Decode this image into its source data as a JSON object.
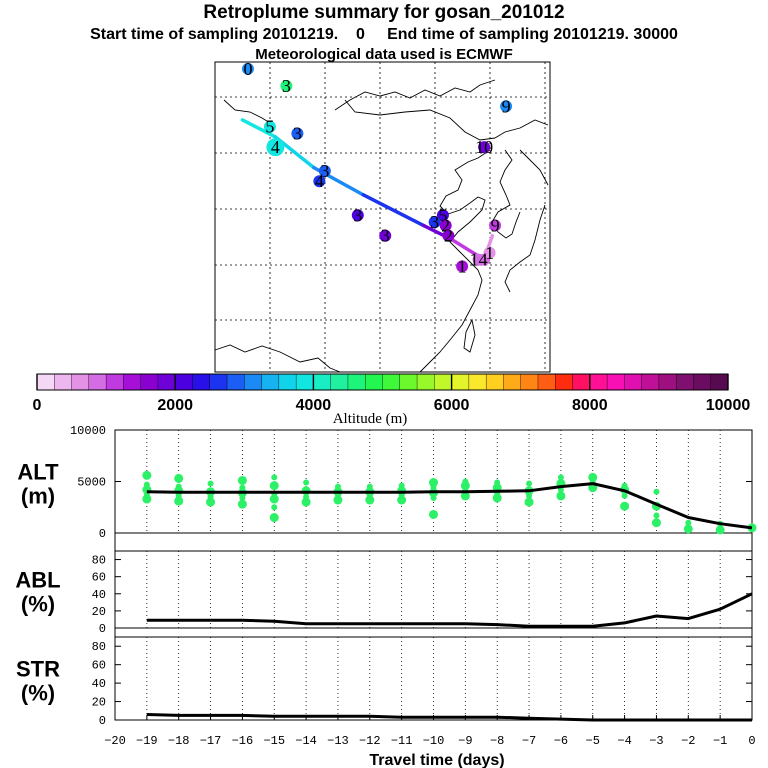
{
  "title": "Retroplume summary for gosan_201012",
  "subtitle": "Start time of sampling 20101219.    0     End time of sampling 20101219. 30000",
  "subtitle2": "Meteorological data used is ECMWF",
  "colorbar": {
    "label": "Altitude (m)",
    "min": 0,
    "max": 10000,
    "ticks": [
      "0",
      "2000",
      "4000",
      "6000",
      "8000",
      "10000"
    ],
    "colors": [
      "#f5d8f5",
      "#eeb6ee",
      "#e392e6",
      "#d46ce4",
      "#bf3be0",
      "#a60fd8",
      "#8a00d0",
      "#6e00d8",
      "#4c00e0",
      "#2a10e8",
      "#1c34f0",
      "#1a5ef4",
      "#1b8af4",
      "#16b3f0",
      "#10d4ea",
      "#12e6e0",
      "#18edc4",
      "#20f0a0",
      "#1ef47a",
      "#22f650",
      "#40f83a",
      "#6cf82c",
      "#98f82a",
      "#c2f82a",
      "#e4f42a",
      "#fae82c",
      "#ffd020",
      "#ffaa18",
      "#ff8614",
      "#ff5c14",
      "#ff2c10",
      "#ff1060",
      "#ff1094",
      "#f810b4",
      "#e010b0",
      "#c01098",
      "#9e1080",
      "#801070",
      "#6a0c60",
      "#580a50"
    ]
  },
  "map": {
    "trajectory": [
      {
        "lon": 80,
        "lat": 54,
        "alt": 3800
      },
      {
        "lon": 86,
        "lat": 51.5,
        "alt": 3900
      },
      {
        "lon": 93,
        "lat": 47,
        "alt": 3500
      },
      {
        "lon": 102,
        "lat": 43,
        "alt": 2800
      },
      {
        "lon": 113,
        "lat": 38.5,
        "alt": 2200
      },
      {
        "lon": 118,
        "lat": 36.5,
        "alt": 1500
      },
      {
        "lon": 124,
        "lat": 33.5,
        "alt": 900
      },
      {
        "lon": 125.5,
        "lat": 37,
        "alt": 500
      }
    ],
    "clusters": [
      {
        "label": "0",
        "lon": 81,
        "lat": 61.5,
        "alt": 3200
      },
      {
        "label": "3",
        "lon": 88,
        "lat": 59,
        "alt": 4500
      },
      {
        "label": "9",
        "lon": 128,
        "lat": 56,
        "alt": 3000
      },
      {
        "label": "5",
        "lon": 85,
        "lat": 53,
        "alt": 3800
      },
      {
        "label": "3",
        "lon": 90,
        "lat": 52,
        "alt": 2800
      },
      {
        "label": "4",
        "lon": 86,
        "lat": 50,
        "alt": 3900
      },
      {
        "label": "10",
        "lon": 124,
        "lat": 50,
        "alt": 1900
      },
      {
        "label": "3",
        "lon": 95,
        "lat": 46.5,
        "alt": 2900
      },
      {
        "label": "4",
        "lon": 94,
        "lat": 45,
        "alt": 2500
      },
      {
        "label": "3",
        "lon": 101,
        "lat": 40,
        "alt": 2100
      },
      {
        "label": "5",
        "lon": 116.5,
        "lat": 40,
        "alt": 2200
      },
      {
        "label": "3",
        "lon": 115,
        "lat": 39,
        "alt": 2600
      },
      {
        "label": "2",
        "lon": 117,
        "lat": 38.5,
        "alt": 1700
      },
      {
        "label": "9",
        "lon": 126,
        "lat": 38.5,
        "alt": 1200
      },
      {
        "label": "3",
        "lon": 106,
        "lat": 37,
        "alt": 1800
      },
      {
        "label": "2",
        "lon": 117.5,
        "lat": 37,
        "alt": 1500
      },
      {
        "label": "1",
        "lon": 125,
        "lat": 34.5,
        "alt": 500
      },
      {
        "label": "14",
        "lon": 123,
        "lat": 33.5,
        "alt": 800
      },
      {
        "label": "1",
        "lon": 120,
        "lat": 32.5,
        "alt": 1400
      }
    ]
  },
  "chart_data": [
    {
      "type": "line",
      "panel": "ALT",
      "ylabel": "ALT\n(m)",
      "ylabel_line1": "ALT",
      "ylabel_line2": "(m)",
      "ylim": [
        0,
        10000
      ],
      "yticks": [
        "10000",
        "5000",
        "0"
      ],
      "x": [
        -19,
        -18,
        -17,
        -16,
        -15,
        -14,
        -13,
        -12,
        -11,
        -10,
        -9,
        -8,
        -7,
        -6,
        -5,
        -4,
        -3,
        -2,
        -1,
        0
      ],
      "values": [
        4000,
        3950,
        3950,
        3950,
        3950,
        3950,
        3950,
        3950,
        3950,
        4000,
        4000,
        4050,
        4100,
        4500,
        4800,
        4100,
        2800,
        1500,
        900,
        500
      ],
      "scatter": [
        {
          "x": -19,
          "y": [
            3300,
            3700,
            4200,
            4700,
            5600
          ]
        },
        {
          "x": -18,
          "y": [
            3100,
            3600,
            4100,
            4500,
            5300
          ]
        },
        {
          "x": -17,
          "y": [
            3000,
            3500,
            4000,
            4800
          ]
        },
        {
          "x": -16,
          "y": [
            2800,
            3400,
            3900,
            4400,
            5100
          ]
        },
        {
          "x": -15,
          "y": [
            1500,
            2500,
            3300,
            3800,
            4600,
            5400
          ]
        },
        {
          "x": -14,
          "y": [
            3000,
            3500,
            4100,
            4900
          ]
        },
        {
          "x": -13,
          "y": [
            3200,
            3600,
            4000,
            4500
          ]
        },
        {
          "x": -12,
          "y": [
            3200,
            3600,
            4000,
            4500
          ]
        },
        {
          "x": -11,
          "y": [
            3200,
            3700,
            4100,
            4600
          ]
        },
        {
          "x": -10,
          "y": [
            1800,
            3400,
            3900,
            4400,
            4900
          ]
        },
        {
          "x": -9,
          "y": [
            3600,
            4100,
            4600,
            5000
          ]
        },
        {
          "x": -8,
          "y": [
            3400,
            3900,
            4400,
            4900
          ]
        },
        {
          "x": -7,
          "y": [
            3000,
            3600,
            4100,
            4800
          ]
        },
        {
          "x": -6,
          "y": [
            3600,
            4200,
            4800,
            5400
          ]
        },
        {
          "x": -5,
          "y": [
            4400,
            4900,
            5400
          ]
        },
        {
          "x": -4,
          "y": [
            2600,
            3600,
            4200,
            4600
          ]
        },
        {
          "x": -3,
          "y": [
            1000,
            1700,
            2600,
            4000
          ]
        },
        {
          "x": -2,
          "y": [
            400,
            1000
          ]
        },
        {
          "x": -1,
          "y": [
            300,
            900
          ]
        },
        {
          "x": 0,
          "y": [
            500
          ]
        }
      ]
    },
    {
      "type": "line",
      "panel": "ABL",
      "ylabel_line1": "ABL",
      "ylabel_line2": "(%)",
      "ylim": [
        0,
        90
      ],
      "yticks": [
        "80",
        "60",
        "40",
        "20",
        "0"
      ],
      "x": [
        -19,
        -18,
        -17,
        -16,
        -15,
        -14,
        -13,
        -12,
        -11,
        -10,
        -9,
        -8,
        -7,
        -6,
        -5,
        -4,
        -3,
        -2,
        -1,
        0
      ],
      "values": [
        9,
        9,
        9,
        9,
        8,
        5,
        5,
        5,
        5,
        5,
        5,
        4,
        2,
        2,
        2,
        6,
        14,
        11,
        22,
        40
      ]
    },
    {
      "type": "line",
      "panel": "STR",
      "ylabel_line1": "STR",
      "ylabel_line2": "(%)",
      "ylim": [
        0,
        90
      ],
      "yticks": [
        "80",
        "60",
        "40",
        "20",
        "0"
      ],
      "x": [
        -19,
        -18,
        -17,
        -16,
        -15,
        -14,
        -13,
        -12,
        -11,
        -10,
        -9,
        -8,
        -7,
        -6,
        -5,
        -4,
        -3,
        -2,
        -1,
        0
      ],
      "values": [
        6,
        5,
        5,
        5,
        4,
        4,
        4,
        4,
        3,
        3,
        3,
        3,
        2,
        1,
        0,
        0,
        0,
        0,
        0,
        0
      ]
    }
  ],
  "xaxis": {
    "label": "Travel time (days)",
    "ticks": [
      "−20",
      "−19",
      "−18",
      "−17",
      "−16",
      "−15",
      "−14",
      "−13",
      "−12",
      "−11",
      "−10",
      "−9",
      "−8",
      "−7",
      "−6",
      "−5",
      "−4",
      "−3",
      "−2",
      "−1",
      "0"
    ]
  }
}
